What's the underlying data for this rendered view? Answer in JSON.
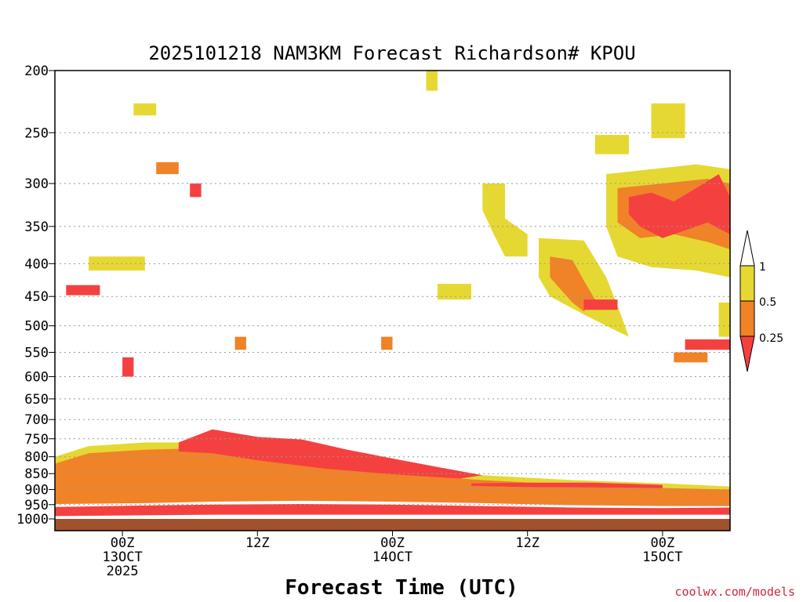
{
  "chart_data": {
    "type": "heatmap",
    "title": "2025101218 NAM3KM Forecast Richardson# KPOU",
    "xlabel": "Forecast Time (UTC)",
    "ylabel": "",
    "y_scale": "pressure (inverted, log-like)",
    "ylim": [
      1000,
      200
    ],
    "y_ticks": [
      200,
      250,
      300,
      350,
      400,
      450,
      500,
      550,
      600,
      650,
      700,
      750,
      800,
      850,
      900,
      950,
      1000
    ],
    "x_ticks": [
      {
        "hour": 6,
        "lines": [
          "00Z",
          "13OCT",
          "2025"
        ]
      },
      {
        "hour": 18,
        "lines": [
          "12Z"
        ]
      },
      {
        "hour": 30,
        "lines": [
          "00Z",
          "14OCT"
        ]
      },
      {
        "hour": 42,
        "lines": [
          "12Z"
        ]
      },
      {
        "hour": 54,
        "lines": [
          "00Z",
          "15OCT"
        ]
      }
    ],
    "xlim_hours": [
      0,
      60
    ],
    "grid": true,
    "legend": {
      "placement": "right",
      "labels": [
        "1",
        "0.5",
        "0.25"
      ],
      "colors": {
        "above_1": "#ffffff",
        "0.5_1": "#e6d832",
        "0.25_0.5": "#f08228",
        "below_0.25": "#f54040"
      }
    },
    "ground_color": "#a0522d",
    "regions": [
      {
        "category": "0.5_1",
        "polygon": [
          [
            0,
            935
          ],
          [
            8,
            935
          ],
          [
            14,
            930
          ],
          [
            22,
            928
          ],
          [
            30,
            930
          ],
          [
            38,
            935
          ],
          [
            46,
            944
          ],
          [
            54,
            948
          ],
          [
            60,
            948
          ],
          [
            60,
            890
          ],
          [
            54,
            880
          ],
          [
            46,
            870
          ],
          [
            38,
            855
          ],
          [
            30,
            835
          ],
          [
            22,
            800
          ],
          [
            14,
            760
          ],
          [
            8,
            760
          ],
          [
            3,
            770
          ],
          [
            0,
            800
          ]
        ]
      },
      {
        "category": "0.25_0.5",
        "polygon": [
          [
            0,
            948
          ],
          [
            8,
            945
          ],
          [
            14,
            940
          ],
          [
            22,
            937
          ],
          [
            30,
            940
          ],
          [
            38,
            945
          ],
          [
            46,
            952
          ],
          [
            54,
            955
          ],
          [
            60,
            955
          ],
          [
            60,
            900
          ],
          [
            54,
            895
          ],
          [
            46,
            885
          ],
          [
            38,
            870
          ],
          [
            30,
            850
          ],
          [
            22,
            815
          ],
          [
            14,
            775
          ],
          [
            8,
            780
          ],
          [
            3,
            790
          ],
          [
            0,
            820
          ]
        ]
      },
      {
        "category": "below_0.25",
        "polygon": [
          [
            0,
            990
          ],
          [
            14,
            985
          ],
          [
            30,
            985
          ],
          [
            46,
            985
          ],
          [
            60,
            985
          ],
          [
            60,
            960
          ],
          [
            54,
            962
          ],
          [
            46,
            960
          ],
          [
            38,
            955
          ],
          [
            30,
            950
          ],
          [
            22,
            948
          ],
          [
            14,
            950
          ],
          [
            8,
            953
          ],
          [
            0,
            958
          ]
        ]
      },
      {
        "category": "below_0.25",
        "polygon": [
          [
            11,
            760
          ],
          [
            14,
            725
          ],
          [
            18,
            745
          ],
          [
            22,
            752
          ],
          [
            26,
            780
          ],
          [
            30,
            805
          ],
          [
            34,
            830
          ],
          [
            38,
            855
          ],
          [
            36,
            865
          ],
          [
            30,
            852
          ],
          [
            24,
            835
          ],
          [
            18,
            810
          ],
          [
            14,
            790
          ],
          [
            11,
            785
          ]
        ]
      },
      {
        "category": "below_0.25",
        "polygon": [
          [
            37,
            880
          ],
          [
            42,
            878
          ],
          [
            48,
            878
          ],
          [
            54,
            885
          ],
          [
            54,
            895
          ],
          [
            48,
            893
          ],
          [
            42,
            892
          ],
          [
            37,
            888
          ]
        ]
      },
      {
        "category": "0.5_1",
        "polygon": [
          [
            43,
            365
          ],
          [
            47,
            368
          ],
          [
            49,
            420
          ],
          [
            50,
            465
          ],
          [
            51,
            520
          ],
          [
            49,
            500
          ],
          [
            47,
            480
          ],
          [
            44,
            450
          ],
          [
            43,
            420
          ]
        ]
      },
      {
        "category": "0.25_0.5",
        "polygon": [
          [
            44,
            390
          ],
          [
            46,
            395
          ],
          [
            47,
            425
          ],
          [
            48,
            455
          ],
          [
            47,
            475
          ],
          [
            46,
            460
          ],
          [
            45,
            440
          ],
          [
            44,
            420
          ]
        ]
      },
      {
        "category": "0.5_1",
        "polygon": [
          [
            49,
            290
          ],
          [
            53,
            285
          ],
          [
            57,
            280
          ],
          [
            60,
            285
          ],
          [
            60,
            420
          ],
          [
            57,
            410
          ],
          [
            53,
            405
          ],
          [
            50,
            390
          ],
          [
            49,
            350
          ]
        ]
      },
      {
        "category": "0.25_0.5",
        "polygon": [
          [
            50,
            305
          ],
          [
            54,
            300
          ],
          [
            58,
            295
          ],
          [
            60,
            300
          ],
          [
            60,
            380
          ],
          [
            58,
            370
          ],
          [
            55,
            360
          ],
          [
            52,
            365
          ],
          [
            50,
            345
          ]
        ]
      },
      {
        "category": "below_0.25",
        "polygon": [
          [
            51,
            315
          ],
          [
            53,
            310
          ],
          [
            55,
            320
          ],
          [
            57,
            305
          ],
          [
            59,
            290
          ],
          [
            60,
            315
          ],
          [
            60,
            360
          ],
          [
            58,
            345
          ],
          [
            56,
            355
          ],
          [
            54,
            365
          ],
          [
            52,
            350
          ],
          [
            51,
            335
          ]
        ]
      },
      {
        "category": "below_0.25",
        "polygon": [
          [
            47,
            455
          ],
          [
            50,
            455
          ],
          [
            50,
            472
          ],
          [
            47,
            472
          ]
        ]
      },
      {
        "category": "0.5_1",
        "polygon": [
          [
            38,
            300
          ],
          [
            40,
            300
          ],
          [
            40,
            340
          ],
          [
            42,
            360
          ],
          [
            42,
            390
          ],
          [
            40,
            390
          ],
          [
            39,
            360
          ],
          [
            38,
            330
          ]
        ]
      },
      {
        "category": "0.5_1",
        "polygon": [
          [
            7,
            225
          ],
          [
            9,
            225
          ],
          [
            9,
            235
          ],
          [
            7,
            235
          ]
        ]
      },
      {
        "category": "0.5_1",
        "polygon": [
          [
            53,
            225
          ],
          [
            56,
            225
          ],
          [
            56,
            255
          ],
          [
            53,
            255
          ]
        ]
      },
      {
        "category": "0.5_1",
        "polygon": [
          [
            48,
            252
          ],
          [
            51,
            252
          ],
          [
            51,
            270
          ],
          [
            48,
            270
          ]
        ]
      },
      {
        "category": "0.5_1",
        "polygon": [
          [
            3,
            390
          ],
          [
            8,
            390
          ],
          [
            8,
            410
          ],
          [
            3,
            410
          ]
        ]
      },
      {
        "category": "0.5_1",
        "polygon": [
          [
            34,
            430
          ],
          [
            37,
            430
          ],
          [
            37,
            455
          ],
          [
            34,
            455
          ]
        ]
      },
      {
        "category": "0.5_1",
        "polygon": [
          [
            33,
            200
          ],
          [
            34,
            200
          ],
          [
            34,
            215
          ],
          [
            33,
            215
          ]
        ]
      },
      {
        "category": "0.25_0.5",
        "polygon": [
          [
            9,
            278
          ],
          [
            11,
            278
          ],
          [
            11,
            290
          ],
          [
            9,
            290
          ]
        ]
      },
      {
        "category": "below_0.25",
        "polygon": [
          [
            1,
            432
          ],
          [
            4,
            432
          ],
          [
            4,
            448
          ],
          [
            1,
            448
          ]
        ]
      },
      {
        "category": "below_0.25",
        "polygon": [
          [
            6,
            560
          ],
          [
            7,
            560
          ],
          [
            7,
            600
          ],
          [
            6,
            600
          ]
        ]
      },
      {
        "category": "below_0.25",
        "polygon": [
          [
            12,
            300
          ],
          [
            13,
            300
          ],
          [
            13,
            315
          ],
          [
            12,
            315
          ]
        ]
      },
      {
        "category": "below_0.25",
        "polygon": [
          [
            56,
            525
          ],
          [
            60,
            525
          ],
          [
            60,
            545
          ],
          [
            56,
            545
          ]
        ]
      },
      {
        "category": "0.5_1",
        "polygon": [
          [
            59,
            460
          ],
          [
            60,
            460
          ],
          [
            60,
            520
          ],
          [
            59,
            520
          ]
        ]
      },
      {
        "category": "0.25_0.5",
        "polygon": [
          [
            55,
            550
          ],
          [
            58,
            550
          ],
          [
            58,
            570
          ],
          [
            55,
            570
          ]
        ]
      },
      {
        "category": "0.25_0.5",
        "polygon": [
          [
            16,
            520
          ],
          [
            17,
            520
          ],
          [
            17,
            545
          ],
          [
            16,
            545
          ]
        ]
      },
      {
        "category": "0.25_0.5",
        "polygon": [
          [
            29,
            520
          ],
          [
            30,
            520
          ],
          [
            30,
            545
          ],
          [
            29,
            545
          ]
        ]
      }
    ]
  }
}
